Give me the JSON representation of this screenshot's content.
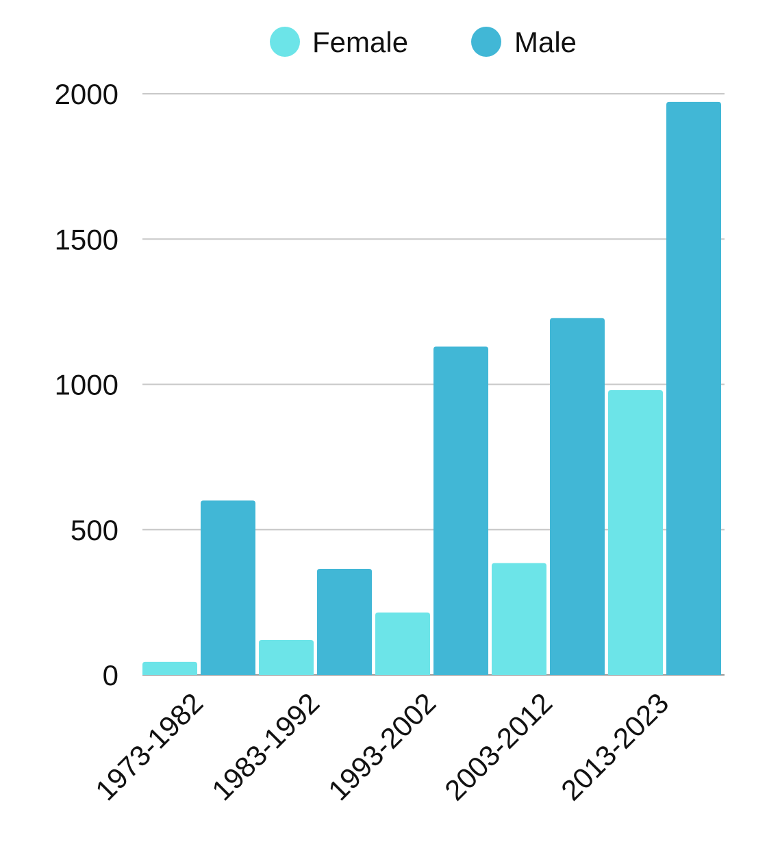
{
  "chart_data": {
    "type": "bar",
    "title": "",
    "xlabel": "",
    "ylabel": "",
    "categories": [
      "1973-1982",
      "1983-1992",
      "1993-2002",
      "2003-2012",
      "2013-2023"
    ],
    "series": [
      {
        "name": "Female",
        "color": "#6ce4e8",
        "values": [
          45,
          120,
          215,
          385,
          980
        ]
      },
      {
        "name": "Male",
        "color": "#41b7d6",
        "values": [
          600,
          365,
          1130,
          1228,
          1972
        ]
      }
    ],
    "yticks": [
      0,
      500,
      1000,
      1500,
      2000
    ],
    "ylim": [
      0,
      2000
    ],
    "grid": true,
    "legend_position": "top-center"
  }
}
